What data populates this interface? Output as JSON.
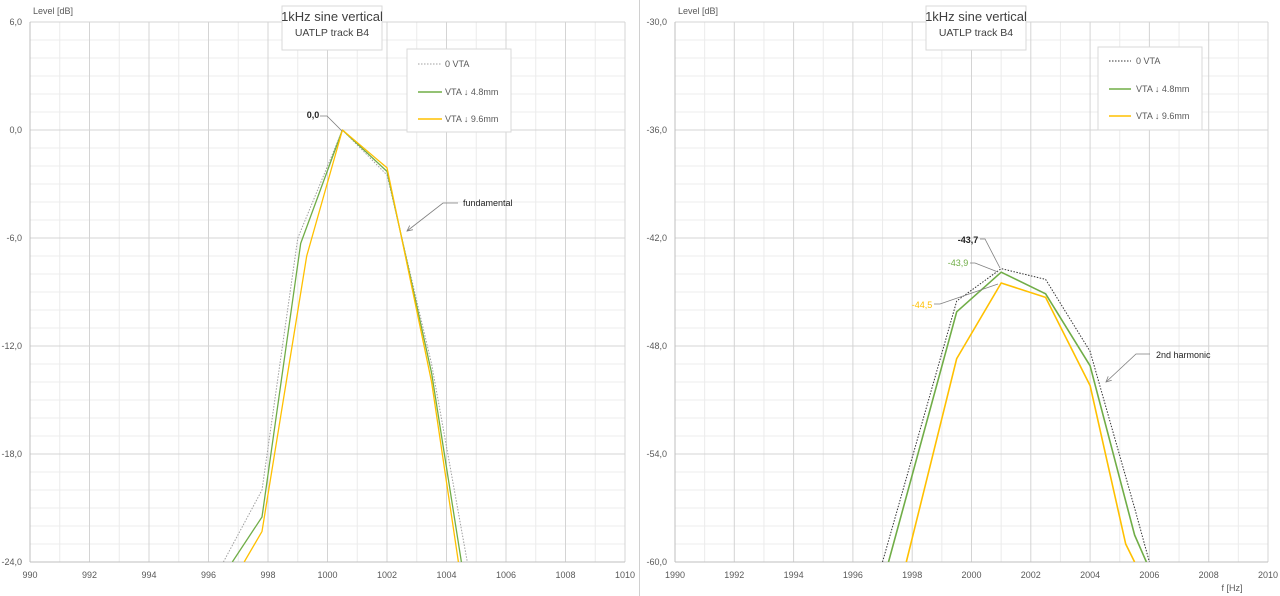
{
  "chart_data": [
    {
      "type": "line",
      "title": "1kHz sine vertical",
      "subtitle": "UATLP track B4",
      "ylabel": "Level [dB]",
      "xlabel": "",
      "xlim": [
        990,
        1010
      ],
      "ylim": [
        -24,
        6
      ],
      "x_ticks": [
        "990",
        "992",
        "994",
        "996",
        "998",
        "1000",
        "1002",
        "1004",
        "1006",
        "1008",
        "1010"
      ],
      "y_ticks": [
        "6,0",
        "0,0",
        "-6,0",
        "-12,0",
        "-18,0",
        "-24,0"
      ],
      "grid": true,
      "legend_position": "top-right",
      "series": [
        {
          "name": "0 VTA",
          "color": "#a0a0a0",
          "dash": "dotted",
          "x": [
            996.5,
            997.8,
            999.0,
            1000.5,
            1002.0,
            1003.5,
            1004.7
          ],
          "y": [
            -24,
            -20,
            -6,
            0,
            -2.5,
            -13,
            -24
          ]
        },
        {
          "name": "VTA ↓ 4.8mm",
          "color": "#70ad47",
          "dash": "solid",
          "x": [
            996.8,
            997.8,
            999.1,
            1000.5,
            1002.0,
            1003.5,
            1004.5
          ],
          "y": [
            -24,
            -21.5,
            -6.3,
            0,
            -2.3,
            -13.5,
            -24
          ]
        },
        {
          "name": "VTA ↓ 9.6mm",
          "color": "#ffc000",
          "dash": "solid",
          "x": [
            997.2,
            997.8,
            999.3,
            1000.5,
            1002.0,
            1003.5,
            1004.4
          ],
          "y": [
            -24,
            -22.3,
            -7,
            0,
            -2.1,
            -14,
            -24
          ]
        }
      ],
      "annotations": [
        {
          "text": "0,0",
          "color": "#222222"
        },
        {
          "text": "fundamental",
          "color": "#222222"
        }
      ]
    },
    {
      "type": "line",
      "title": "1kHz sine vertical",
      "subtitle": "UATLP track B4",
      "ylabel": "Level [dB]",
      "xlabel": "f [Hz]",
      "xlim": [
        1990,
        2010
      ],
      "ylim": [
        -60,
        -30
      ],
      "x_ticks": [
        "1990",
        "1992",
        "1994",
        "1996",
        "1998",
        "2000",
        "2002",
        "2004",
        "2006",
        "2008",
        "2010"
      ],
      "y_ticks": [
        "-30,0",
        "-36,0",
        "-42,0",
        "-48,0",
        "-54,0",
        "-60,0"
      ],
      "grid": true,
      "legend_position": "top-right",
      "series": [
        {
          "name": "0 VTA",
          "color": "#333333",
          "dash": "dotted",
          "x": [
            1997.0,
            1999.5,
            2001.0,
            2002.5,
            2004.0,
            2005.5,
            2006.0
          ],
          "y": [
            -60,
            -45.5,
            -43.7,
            -44.3,
            -48.3,
            -57,
            -60
          ]
        },
        {
          "name": "VTA ↓ 4.8mm",
          "color": "#70ad47",
          "dash": "solid",
          "x": [
            1997.2,
            1999.5,
            2001.0,
            2002.5,
            2004.0,
            2005.5,
            2005.9
          ],
          "y": [
            -60,
            -46.1,
            -43.9,
            -45.1,
            -49.1,
            -58.5,
            -60
          ]
        },
        {
          "name": "VTA ↓ 9.6mm",
          "color": "#ffc000",
          "dash": "solid",
          "x": [
            1997.8,
            1999.5,
            2001.0,
            2002.5,
            2004.0,
            2005.2,
            2005.5
          ],
          "y": [
            -60,
            -48.7,
            -44.5,
            -45.3,
            -50.2,
            -59,
            -60
          ]
        }
      ],
      "annotations": [
        {
          "text": "-43,7",
          "color": "#222222"
        },
        {
          "text": "-43,9",
          "color": "#70ad47"
        },
        {
          "text": "-44,5",
          "color": "#ffc000"
        },
        {
          "text": "2nd harmonic",
          "color": "#222222"
        }
      ]
    }
  ]
}
